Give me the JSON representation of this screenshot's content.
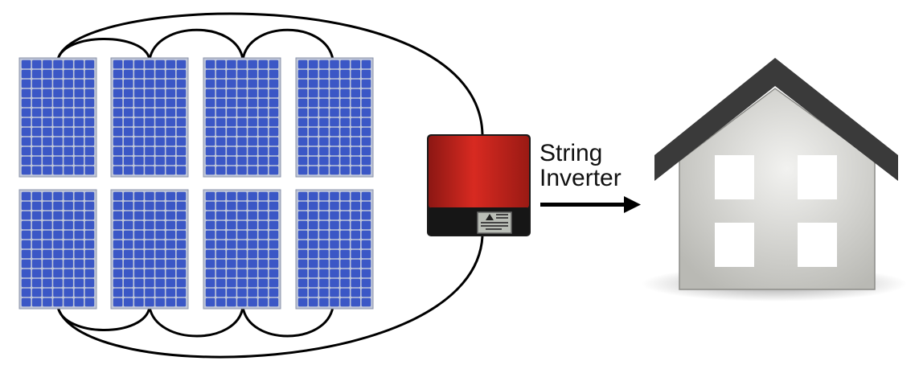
{
  "label": {
    "line1": "String",
    "line2": "Inverter"
  },
  "colors": {
    "panel_cell": "#3b57c6",
    "panel_frame": "#bfc6d8",
    "panel_gap": "#ffffff",
    "wire": "#000000",
    "inverter_red": "#d4261e",
    "inverter_dark": "#7a1411",
    "inverter_base": "#141414",
    "house_wall": "#d3d3cf",
    "house_roof": "#3a3a3a",
    "house_window": "#ffffff",
    "arrow": "#000000"
  },
  "components": {
    "panels": 8,
    "panel_rows": 2,
    "panels_per_row": 4,
    "inverter": "string-inverter",
    "house": "house",
    "arrow": "right-arrow"
  }
}
